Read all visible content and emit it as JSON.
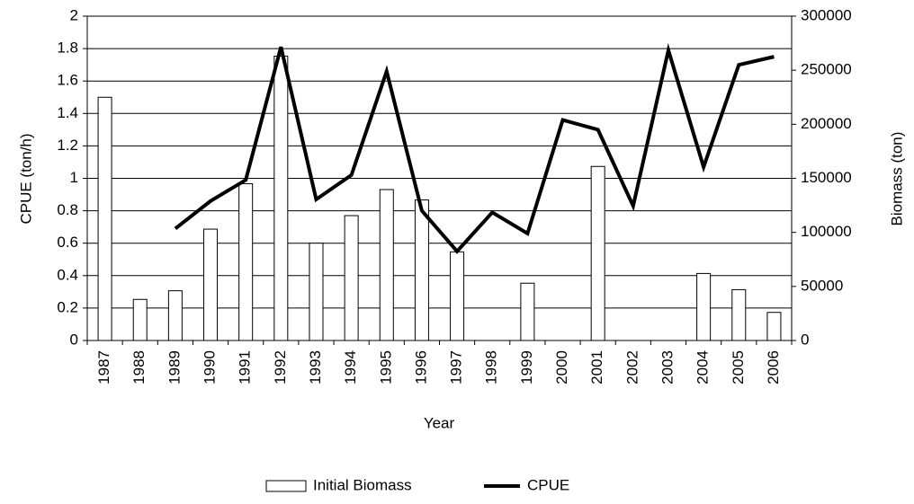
{
  "chart_data": {
    "type": "combo",
    "xlabel": "Year",
    "ylabel": "CPUE (ton/h)",
    "y2label": "Biomass (ton)",
    "categories": [
      "1987",
      "1988",
      "1989",
      "1990",
      "1991",
      "1992",
      "1993",
      "1994",
      "1995",
      "1996",
      "1997",
      "1998",
      "1999",
      "2000",
      "2001",
      "2002",
      "2003",
      "2004",
      "2005",
      "2006"
    ],
    "series": [
      {
        "name": "Initial Biomass",
        "type": "bar",
        "axis": "y2",
        "color": "#ffffff",
        "values": [
          225000,
          38000,
          46000,
          103000,
          145000,
          263000,
          90000,
          115500,
          139600,
          130000,
          82000,
          null,
          53000,
          null,
          161000,
          null,
          null,
          62000,
          47000,
          26000
        ]
      },
      {
        "name": "CPUE",
        "type": "line",
        "axis": "y",
        "color": "#000000",
        "values": [
          null,
          null,
          0.69,
          0.86,
          0.99,
          1.81,
          0.87,
          1.02,
          1.66,
          0.8,
          0.55,
          0.79,
          0.66,
          1.36,
          1.3,
          0.83,
          1.79,
          1.07,
          1.7,
          1.75
        ]
      }
    ],
    "ylim": [
      0,
      2
    ],
    "yticks": [
      0,
      0.2,
      0.4,
      0.6,
      0.8,
      1,
      1.2,
      1.4,
      1.6,
      1.8,
      2
    ],
    "y2lim": [
      0,
      300000
    ],
    "y2ticks": [
      0,
      50000,
      100000,
      150000,
      200000,
      250000,
      300000
    ],
    "grid": true,
    "legend": "bottom"
  }
}
